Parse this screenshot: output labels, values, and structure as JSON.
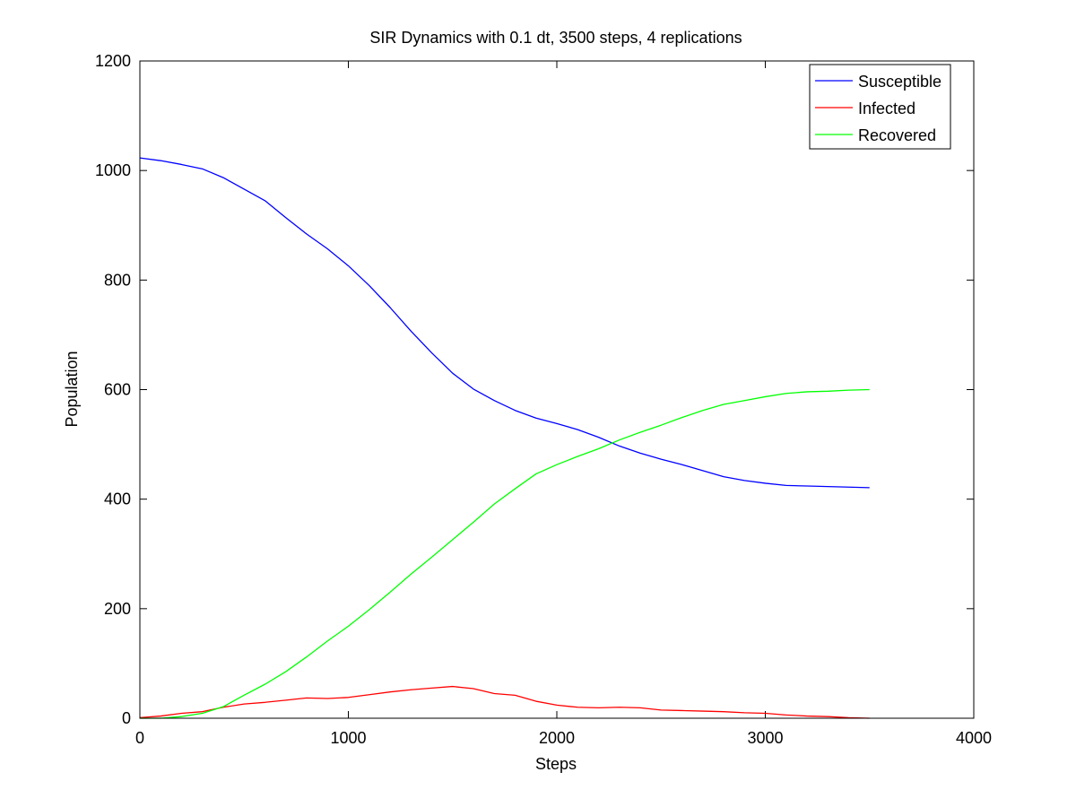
{
  "chart_data": {
    "type": "line",
    "title": "SIR Dynamics with 0.1 dt, 3500 steps, 4 replications",
    "xlabel": "Steps",
    "ylabel": "Population",
    "xlim": [
      0,
      4000
    ],
    "ylim": [
      0,
      1200
    ],
    "xticks": [
      "0",
      "1000",
      "2000",
      "3000",
      "4000"
    ],
    "yticks": [
      "0",
      "200",
      "400",
      "600",
      "800",
      "1000",
      "1200"
    ],
    "grid": false,
    "legend_position": "top-right",
    "series": [
      {
        "name": "Susceptible",
        "color": "#0000ff",
        "points": [
          [
            0,
            1023
          ],
          [
            100,
            1018
          ],
          [
            200,
            1011
          ],
          [
            300,
            1003
          ],
          [
            400,
            987
          ],
          [
            500,
            966
          ],
          [
            600,
            945
          ],
          [
            700,
            914
          ],
          [
            800,
            884
          ],
          [
            900,
            857
          ],
          [
            1000,
            826
          ],
          [
            1100,
            790
          ],
          [
            1200,
            750
          ],
          [
            1300,
            707
          ],
          [
            1400,
            667
          ],
          [
            1500,
            630
          ],
          [
            1600,
            601
          ],
          [
            1700,
            580
          ],
          [
            1800,
            562
          ],
          [
            1900,
            548
          ],
          [
            2000,
            538
          ],
          [
            2100,
            527
          ],
          [
            2200,
            513
          ],
          [
            2300,
            497
          ],
          [
            2400,
            484
          ],
          [
            2500,
            473
          ],
          [
            2600,
            463
          ],
          [
            2700,
            452
          ],
          [
            2800,
            441
          ],
          [
            2900,
            434
          ],
          [
            3000,
            429
          ],
          [
            3100,
            425
          ],
          [
            3200,
            424
          ],
          [
            3300,
            423
          ],
          [
            3400,
            422
          ],
          [
            3500,
            421
          ]
        ]
      },
      {
        "name": "Infected",
        "color": "#ff0000",
        "points": [
          [
            0,
            1
          ],
          [
            100,
            4
          ],
          [
            200,
            9
          ],
          [
            300,
            12
          ],
          [
            400,
            20
          ],
          [
            500,
            26
          ],
          [
            600,
            29
          ],
          [
            700,
            33
          ],
          [
            800,
            37
          ],
          [
            900,
            36
          ],
          [
            1000,
            38
          ],
          [
            1100,
            43
          ],
          [
            1200,
            48
          ],
          [
            1300,
            52
          ],
          [
            1400,
            55
          ],
          [
            1500,
            58
          ],
          [
            1600,
            54
          ],
          [
            1700,
            45
          ],
          [
            1800,
            42
          ],
          [
            1900,
            31
          ],
          [
            2000,
            24
          ],
          [
            2100,
            20
          ],
          [
            2200,
            19
          ],
          [
            2300,
            20
          ],
          [
            2400,
            19
          ],
          [
            2500,
            15
          ],
          [
            2600,
            14
          ],
          [
            2700,
            13
          ],
          [
            2800,
            12
          ],
          [
            2900,
            10
          ],
          [
            3000,
            9
          ],
          [
            3100,
            6
          ],
          [
            3200,
            4
          ],
          [
            3300,
            3
          ],
          [
            3400,
            1
          ],
          [
            3500,
            0
          ]
        ]
      },
      {
        "name": "Recovered",
        "color": "#00ff00",
        "points": [
          [
            0,
            0
          ],
          [
            100,
            0
          ],
          [
            200,
            3
          ],
          [
            300,
            9
          ],
          [
            400,
            21
          ],
          [
            500,
            42
          ],
          [
            600,
            62
          ],
          [
            700,
            85
          ],
          [
            800,
            112
          ],
          [
            900,
            141
          ],
          [
            1000,
            168
          ],
          [
            1100,
            198
          ],
          [
            1200,
            230
          ],
          [
            1300,
            263
          ],
          [
            1400,
            294
          ],
          [
            1500,
            326
          ],
          [
            1600,
            358
          ],
          [
            1700,
            391
          ],
          [
            1800,
            419
          ],
          [
            1900,
            446
          ],
          [
            2000,
            463
          ],
          [
            2100,
            478
          ],
          [
            2200,
            492
          ],
          [
            2300,
            508
          ],
          [
            2400,
            522
          ],
          [
            2500,
            535
          ],
          [
            2600,
            549
          ],
          [
            2700,
            562
          ],
          [
            2800,
            573
          ],
          [
            2900,
            580
          ],
          [
            3000,
            587
          ],
          [
            3100,
            593
          ],
          [
            3200,
            596
          ],
          [
            3300,
            597
          ],
          [
            3400,
            599
          ],
          [
            3500,
            600
          ]
        ]
      }
    ]
  }
}
